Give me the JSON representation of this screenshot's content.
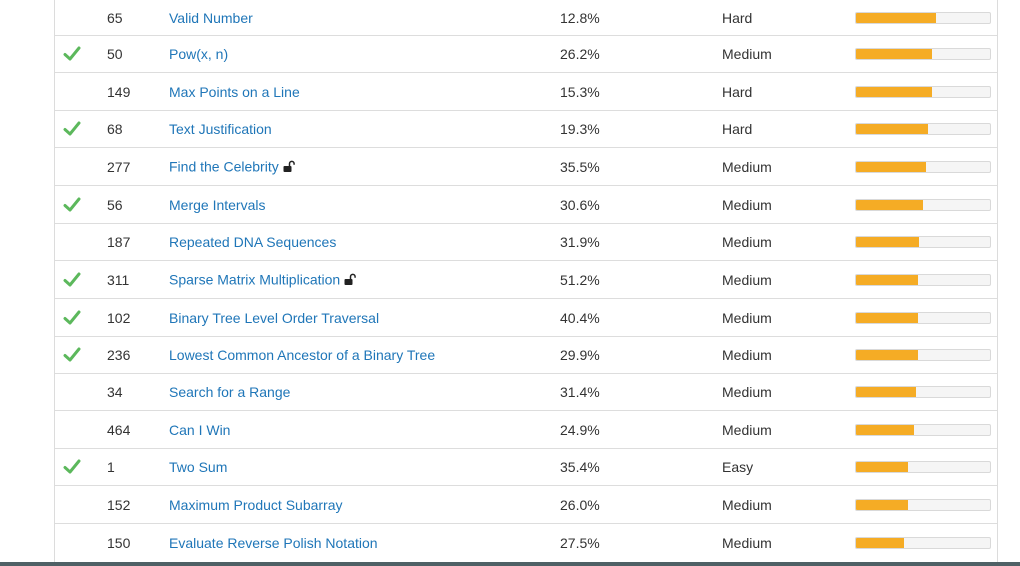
{
  "theme": {
    "link": "#1f76b8",
    "check": "#5cb85c",
    "bar_fill": "#f5ac25"
  },
  "rows": [
    {
      "num": "65",
      "title": "Valid Number",
      "acc": "12.8%",
      "diff": "Hard",
      "solved": false,
      "locked": false,
      "freq": 0.6
    },
    {
      "num": "50",
      "title": "Pow(x, n)",
      "acc": "26.2%",
      "diff": "Medium",
      "solved": true,
      "locked": false,
      "freq": 0.57
    },
    {
      "num": "149",
      "title": "Max Points on a Line",
      "acc": "15.3%",
      "diff": "Hard",
      "solved": false,
      "locked": false,
      "freq": 0.57
    },
    {
      "num": "68",
      "title": "Text Justification",
      "acc": "19.3%",
      "diff": "Hard",
      "solved": true,
      "locked": false,
      "freq": 0.54
    },
    {
      "num": "277",
      "title": "Find the Celebrity",
      "acc": "35.5%",
      "diff": "Medium",
      "solved": false,
      "locked": true,
      "freq": 0.52
    },
    {
      "num": "56",
      "title": "Merge Intervals",
      "acc": "30.6%",
      "diff": "Medium",
      "solved": true,
      "locked": false,
      "freq": 0.5
    },
    {
      "num": "187",
      "title": "Repeated DNA Sequences",
      "acc": "31.9%",
      "diff": "Medium",
      "solved": false,
      "locked": false,
      "freq": 0.47
    },
    {
      "num": "311",
      "title": "Sparse Matrix Multiplication",
      "acc": "51.2%",
      "diff": "Medium",
      "solved": true,
      "locked": true,
      "freq": 0.46
    },
    {
      "num": "102",
      "title": "Binary Tree Level Order Traversal",
      "acc": "40.4%",
      "diff": "Medium",
      "solved": true,
      "locked": false,
      "freq": 0.46
    },
    {
      "num": "236",
      "title": "Lowest Common Ancestor of a Binary Tree",
      "acc": "29.9%",
      "diff": "Medium",
      "solved": true,
      "locked": false,
      "freq": 0.46
    },
    {
      "num": "34",
      "title": "Search for a Range",
      "acc": "31.4%",
      "diff": "Medium",
      "solved": false,
      "locked": false,
      "freq": 0.45
    },
    {
      "num": "464",
      "title": "Can I Win",
      "acc": "24.9%",
      "diff": "Medium",
      "solved": false,
      "locked": false,
      "freq": 0.43
    },
    {
      "num": "1",
      "title": "Two Sum",
      "acc": "35.4%",
      "diff": "Easy",
      "solved": true,
      "locked": false,
      "freq": 0.39
    },
    {
      "num": "152",
      "title": "Maximum Product Subarray",
      "acc": "26.0%",
      "diff": "Medium",
      "solved": false,
      "locked": false,
      "freq": 0.39
    },
    {
      "num": "150",
      "title": "Evaluate Reverse Polish Notation",
      "acc": "27.5%",
      "diff": "Medium",
      "solved": false,
      "locked": false,
      "freq": 0.36
    }
  ]
}
